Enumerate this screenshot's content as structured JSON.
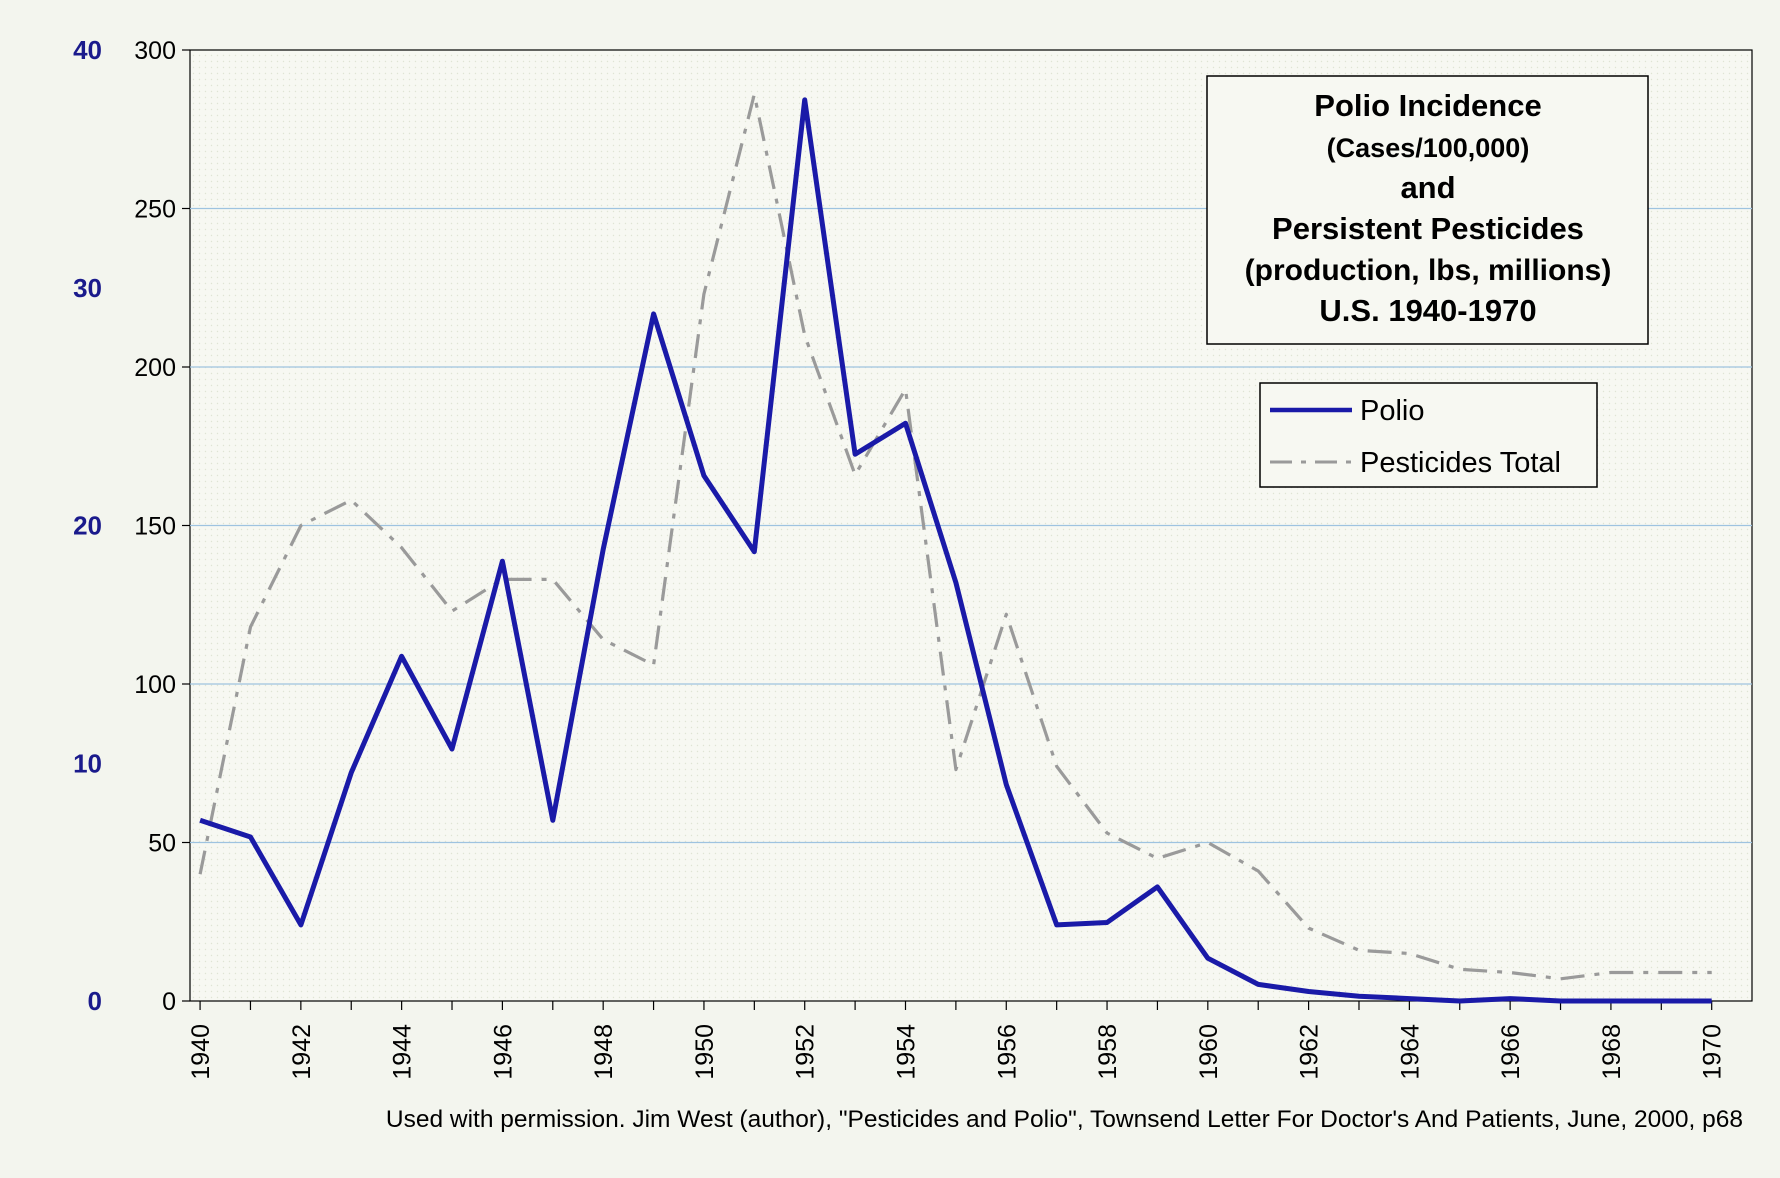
{
  "colors": {
    "background": "#f3f5ee",
    "plot_background": "#f7f8f2",
    "gridline": "#9ec3e0",
    "polio": "#1a1aa8",
    "pesticides": "#9a9a9a",
    "left_axis_labels": "#1a1a8c",
    "axis": "#000000"
  },
  "footer": {
    "credit": "Used with permission.  Jim West (author), \"Pesticides and Polio\", Townsend Letter For Doctor's And Patients, June, 2000, p68"
  },
  "chart_data": {
    "type": "line",
    "title_lines": [
      "Polio Incidence",
      "(Cases/100,000)",
      "and",
      "Persistent Pesticides",
      "(production, lbs, millions)",
      "U.S.  1940-1970"
    ],
    "legend_position": "top-right",
    "grid": true,
    "x": [
      1940,
      1941,
      1942,
      1943,
      1944,
      1945,
      1946,
      1947,
      1948,
      1949,
      1950,
      1951,
      1952,
      1953,
      1954,
      1955,
      1956,
      1957,
      1958,
      1959,
      1960,
      1961,
      1962,
      1963,
      1964,
      1965,
      1966,
      1967,
      1968,
      1969,
      1970
    ],
    "x_ticks": [
      "1940",
      "1942",
      "1944",
      "1946",
      "1948",
      "1950",
      "1952",
      "1954",
      "1956",
      "1958",
      "1960",
      "1962",
      "1964",
      "1966",
      "1968",
      "1970"
    ],
    "xlim": [
      1939.8,
      1970.8
    ],
    "axes": {
      "left": {
        "ylim": [
          0,
          40
        ],
        "ticks": [
          "0",
          "10",
          "20",
          "30",
          "40"
        ]
      },
      "right": {
        "ylim": [
          0,
          300
        ],
        "ticks": [
          "0",
          "50",
          "100",
          "150",
          "200",
          "250",
          "300"
        ]
      }
    },
    "series": [
      {
        "name": "Polio",
        "axis": "left",
        "style": "solid",
        "values": [
          7.6,
          6.9,
          3.2,
          9.6,
          14.5,
          10.6,
          18.5,
          7.6,
          19.0,
          28.9,
          22.1,
          18.9,
          37.9,
          23.0,
          24.3,
          17.6,
          9.1,
          3.2,
          3.3,
          4.8,
          1.8,
          0.7,
          0.4,
          0.2,
          0.1,
          0.0,
          0.1,
          0.0,
          0.0,
          0.0,
          0.0
        ]
      },
      {
        "name": "Pesticides Total",
        "axis": "right",
        "style": "dash-dot",
        "values": [
          40,
          118,
          150,
          158,
          143,
          123,
          133,
          133,
          114,
          106,
          223,
          286,
          210,
          166,
          193,
          73,
          122,
          74,
          53,
          45,
          50,
          41,
          23,
          16,
          15,
          10,
          9,
          7,
          9,
          9,
          9
        ]
      }
    ]
  }
}
